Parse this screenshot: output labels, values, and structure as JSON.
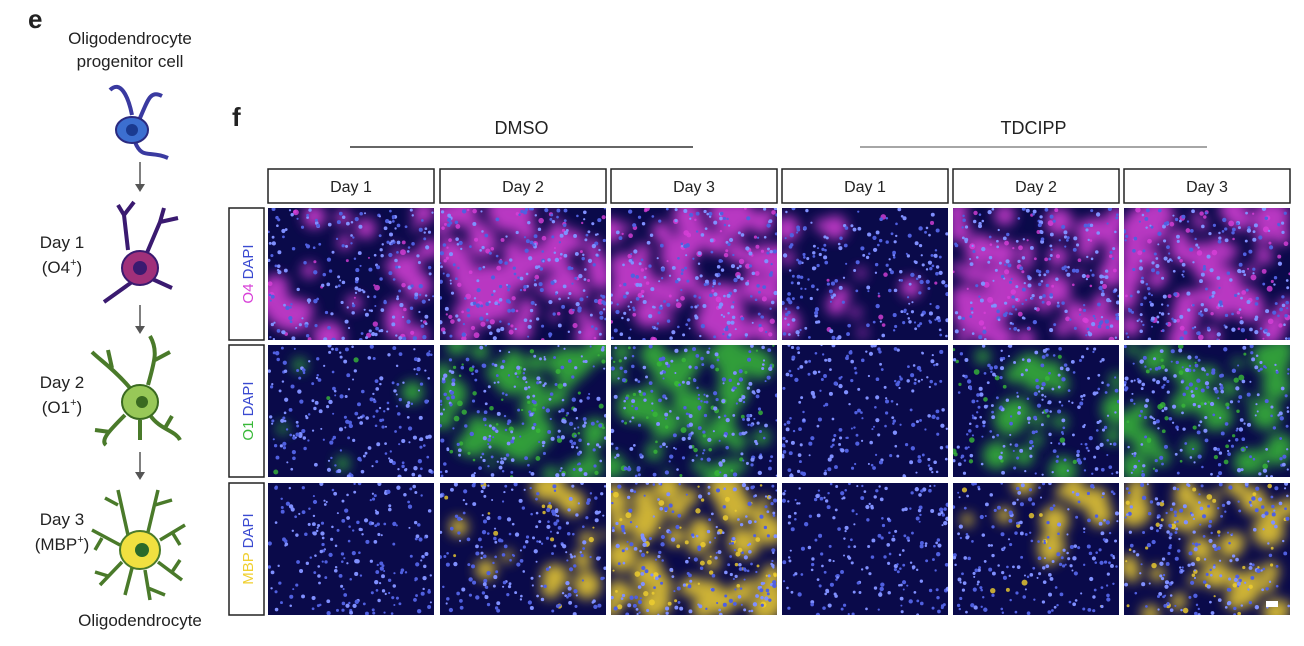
{
  "panel_e": {
    "letter": "e",
    "top_label": [
      "Oligodendrocyte",
      "progenitor cell"
    ],
    "stages": [
      {
        "label": "Day 1",
        "marker": "(O4",
        "sup": "+",
        "close": ")"
      },
      {
        "label": "Day 2",
        "marker": "(O1",
        "sup": "+",
        "close": ")"
      },
      {
        "label": "Day 3",
        "marker": "(MBP",
        "sup": "+",
        "close": ")"
      }
    ],
    "bottom_label": "Oligodendrocyte"
  },
  "panel_f": {
    "letter": "f",
    "groups": [
      {
        "name": "DMSO",
        "columns": [
          "Day 1",
          "Day 2",
          "Day 3"
        ]
      },
      {
        "name": "TDCIPP",
        "columns": [
          "Day 1",
          "Day 2",
          "Day 3"
        ]
      }
    ],
    "rows": [
      {
        "stain": "O4",
        "counterstain": "DAPI"
      },
      {
        "stain": "O1",
        "counterstain": "DAPI"
      },
      {
        "stain": "MBP",
        "counterstain": "DAPI"
      }
    ]
  }
}
